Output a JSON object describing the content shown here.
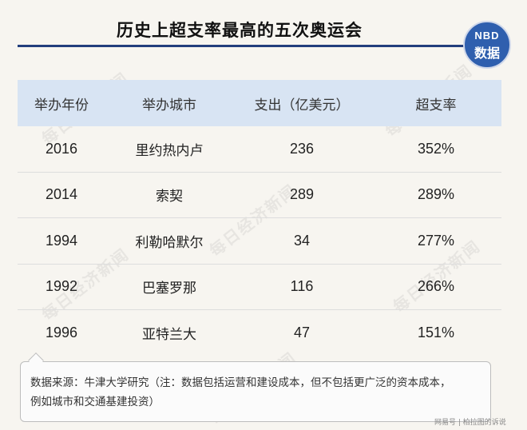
{
  "title": "历史上超支率最高的五次奥运会",
  "badge": {
    "line1": "NBD",
    "line2": "数据"
  },
  "table": {
    "headers": [
      "举办年份",
      "举办城市",
      "支出（亿美元）",
      "超支率"
    ],
    "rows": [
      {
        "year": "2016",
        "city": "里约热内卢",
        "spend": "236",
        "overrun": "352%"
      },
      {
        "year": "2014",
        "city": "索契",
        "spend": "289",
        "overrun": "289%"
      },
      {
        "year": "1994",
        "city": "利勒哈默尔",
        "spend": "34",
        "overrun": "277%"
      },
      {
        "year": "1992",
        "city": "巴塞罗那",
        "spend": "116",
        "overrun": "266%"
      },
      {
        "year": "1996",
        "city": "亚特兰大",
        "spend": "47",
        "overrun": "151%"
      }
    ]
  },
  "note": {
    "line1": "数据来源：牛津大学研究（注：数据包括运营和建设成本，但不包括更广泛的资本成本，",
    "line2": "例如城市和交通基建投资）"
  },
  "watermark": "每日经济新闻",
  "source_tag": "网易号 | 柏拉图的诉说"
}
